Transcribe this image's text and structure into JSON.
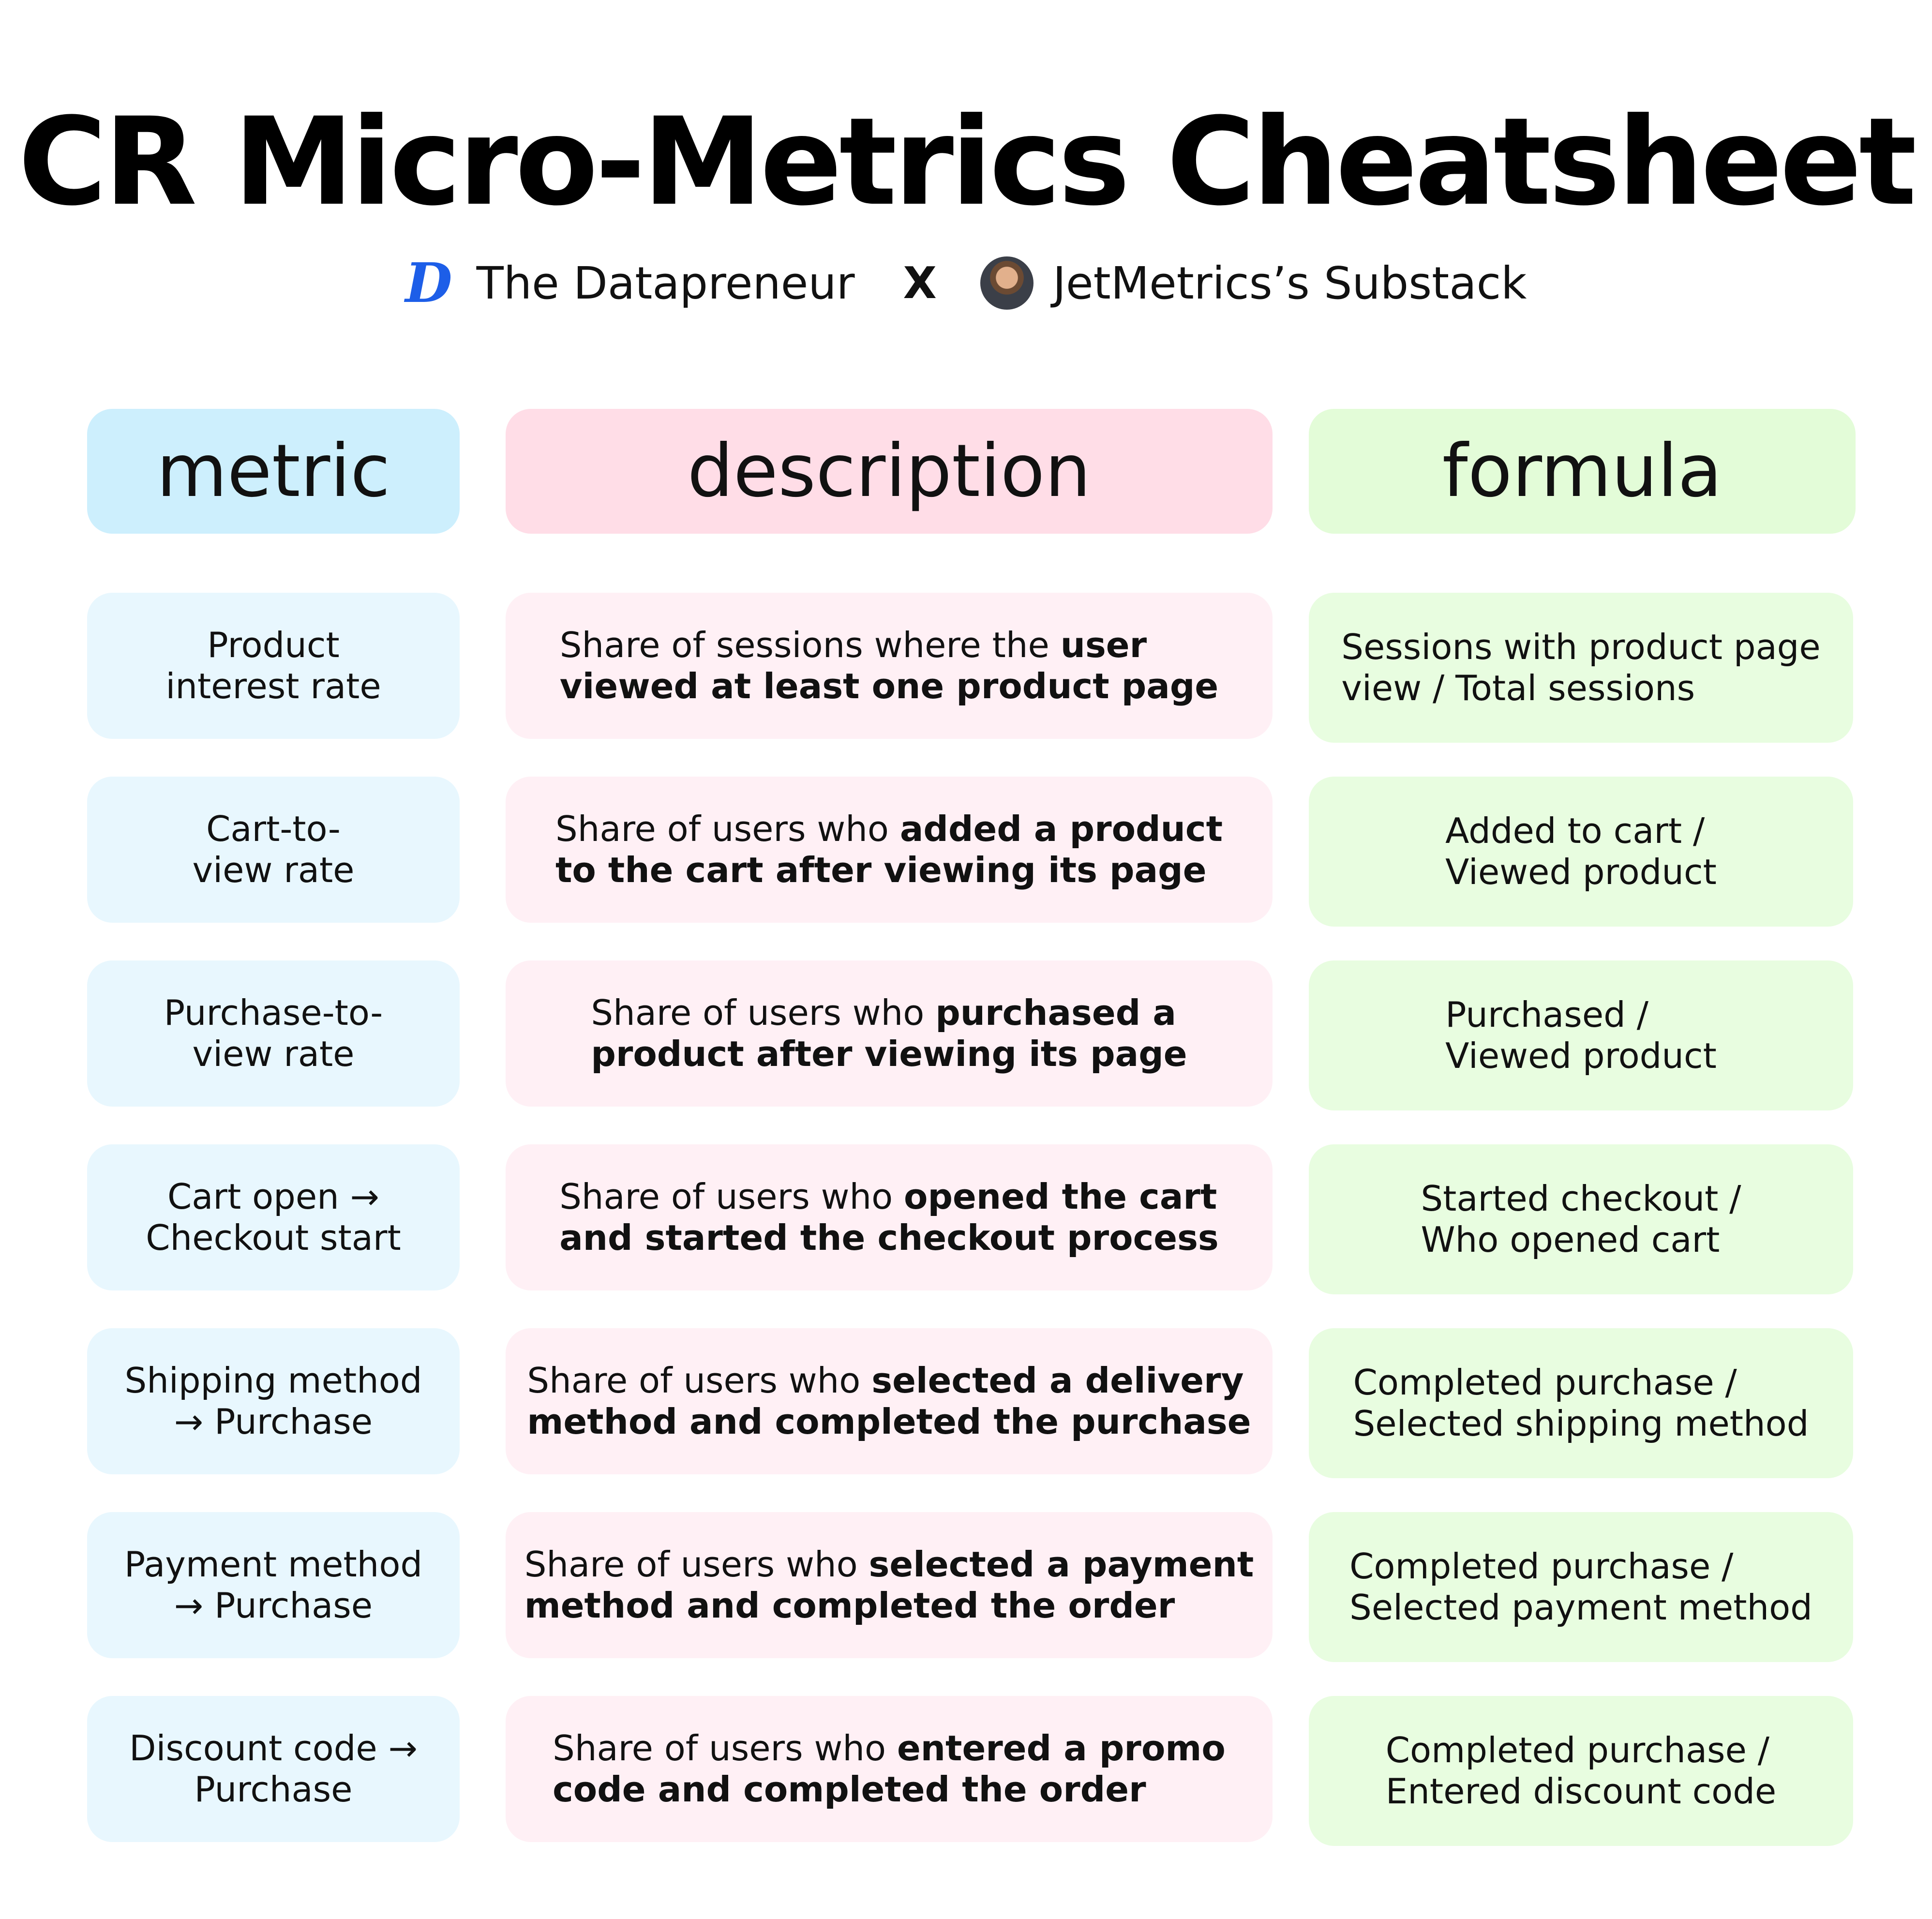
{
  "title": "CR Micro-Metrics Cheatsheet",
  "subtitle": {
    "left_logo_letter": "D",
    "left_name": "The Datapreneur",
    "separator": "X",
    "right_name": "JetMetrics’s Substack"
  },
  "headers": {
    "metric": "metric",
    "description": "description",
    "formula": "formula"
  },
  "rows": [
    {
      "metric_line1": "Product",
      "metric_line2": "interest rate",
      "desc_line1_plain": "Share of sessions where the ",
      "desc_line1_bold": "user",
      "desc_line2_bold": "viewed at least one product page",
      "formula_line1": "Sessions with product page",
      "formula_line2": "view / Total sessions"
    },
    {
      "metric_line1": "Cart-to-",
      "metric_line2": "view rate",
      "desc_line1_plain": "Share of users who ",
      "desc_line1_bold": "added a product",
      "desc_line2_bold": "to the cart after viewing its page",
      "formula_line1": "Added to cart /",
      "formula_line2": "Viewed product"
    },
    {
      "metric_line1": "Purchase-to-",
      "metric_line2": "view rate",
      "desc_line1_plain": "Share of users who ",
      "desc_line1_bold": "purchased a",
      "desc_line2_bold": "product after viewing its page",
      "formula_line1": "Purchased /",
      "formula_line2": "Viewed product"
    },
    {
      "metric_line1": "Cart open →",
      "metric_line2": "Checkout start",
      "desc_line1_plain": "Share of users who ",
      "desc_line1_bold": "opened the cart",
      "desc_line2_bold": "and started the checkout process",
      "formula_line1": "Started checkout /",
      "formula_line2": "Who opened cart"
    },
    {
      "metric_line1": "Shipping method",
      "metric_line2": "→ Purchase",
      "desc_line1_plain": "Share of users who ",
      "desc_line1_bold": "selected a delivery",
      "desc_line2_bold": "method and completed the purchase",
      "formula_line1": "Completed purchase /",
      "formula_line2": "Selected shipping method"
    },
    {
      "metric_line1": "Payment method",
      "metric_line2": "→ Purchase",
      "desc_line1_plain": "Share of users who ",
      "desc_line1_bold": "selected a payment",
      "desc_line2_bold": "method and completed the order",
      "formula_line1": "Completed purchase /",
      "formula_line2": "Selected payment method"
    },
    {
      "metric_line1": "Discount code →",
      "metric_line2": "Purchase",
      "desc_line1_plain": "Share of users who ",
      "desc_line1_bold": "entered a promo",
      "desc_line2_bold": "code and completed the order",
      "formula_line1": "Completed purchase /",
      "formula_line2": "Entered discount code"
    }
  ]
}
